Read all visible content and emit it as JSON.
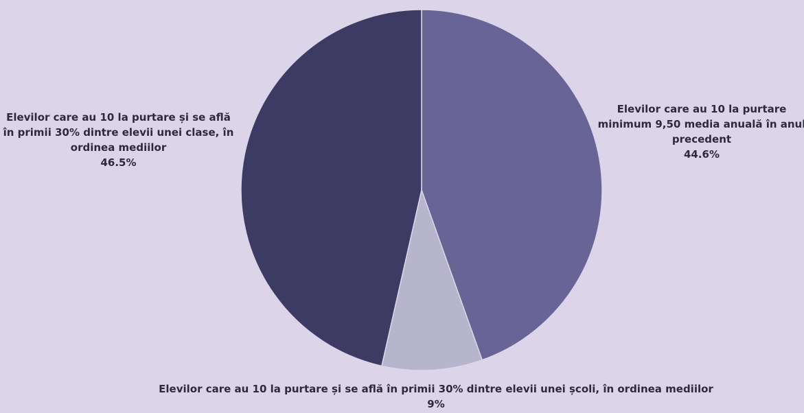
{
  "background_color": "#dcd5ea",
  "chart_data": {
    "type": "pie",
    "title": "",
    "start_angle_deg": 0,
    "direction": "clockwise",
    "slices": [
      {
        "label": "Elevilor care au 10 la purtare minimum 9,50 media anuală în anul precedent",
        "value": 44.6,
        "value_label": "44.6%",
        "color": "#686495"
      },
      {
        "label": "Elevilor care au 10 la purtare și se află în primii 30% dintre elevii unei școli, în ordinea mediilor",
        "value": 9,
        "value_label": "9%",
        "color": "#b7b5cc"
      },
      {
        "label": "Elevilor care au 10 la purtare și se află în primii 30% dintre elevii unei clase, în ordinea mediilor",
        "value": 46.5,
        "value_label": "46.5%",
        "color": "#3d3b63"
      }
    ]
  }
}
